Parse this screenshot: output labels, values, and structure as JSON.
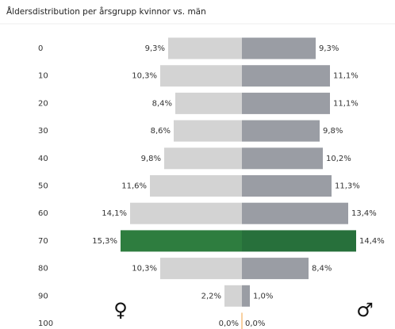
{
  "chart_data": {
    "type": "pyramid",
    "title": "Åldersdistribution per årsgrupp kvinnor vs. män",
    "categories": [
      "0",
      "10",
      "20",
      "30",
      "40",
      "50",
      "60",
      "70",
      "80",
      "90",
      "100"
    ],
    "annotations": [
      "♀",
      "♂"
    ],
    "series": [
      {
        "name": "kvinnor",
        "side": "left",
        "colors": [
          "#d3d3d3",
          "#d3d3d3",
          "#d3d3d3",
          "#d3d3d3",
          "#d3d3d3",
          "#d3d3d3",
          "#d3d3d3",
          "#2e7d3f",
          "#d3d3d3",
          "#d3d3d3",
          "#d3d3d3"
        ],
        "values": [
          9.3,
          10.3,
          8.4,
          8.6,
          9.8,
          11.6,
          14.1,
          15.3,
          10.3,
          2.2,
          0.0
        ],
        "value_labels": [
          "9,3%",
          "10,3%",
          "8,4%",
          "8,6%",
          "9,8%",
          "11,6%",
          "14,1%",
          "15,3%",
          "10,3%",
          "2,2%",
          "0,0%"
        ]
      },
      {
        "name": "män",
        "side": "right",
        "colors": [
          "#9a9da4",
          "#9a9da4",
          "#9a9da4",
          "#9a9da4",
          "#9a9da4",
          "#9a9da4",
          "#9a9da4",
          "#27703b",
          "#9a9da4",
          "#9a9da4",
          "#9a9da4"
        ],
        "values": [
          9.3,
          11.1,
          11.1,
          9.8,
          10.2,
          11.3,
          13.4,
          14.4,
          8.4,
          1.0,
          0.0
        ],
        "value_labels": [
          "9,3%",
          "11,1%",
          "11,1%",
          "9,8%",
          "10,2%",
          "11,3%",
          "13,4%",
          "14,4%",
          "8,4%",
          "1,0%",
          "0,0%"
        ]
      }
    ]
  }
}
